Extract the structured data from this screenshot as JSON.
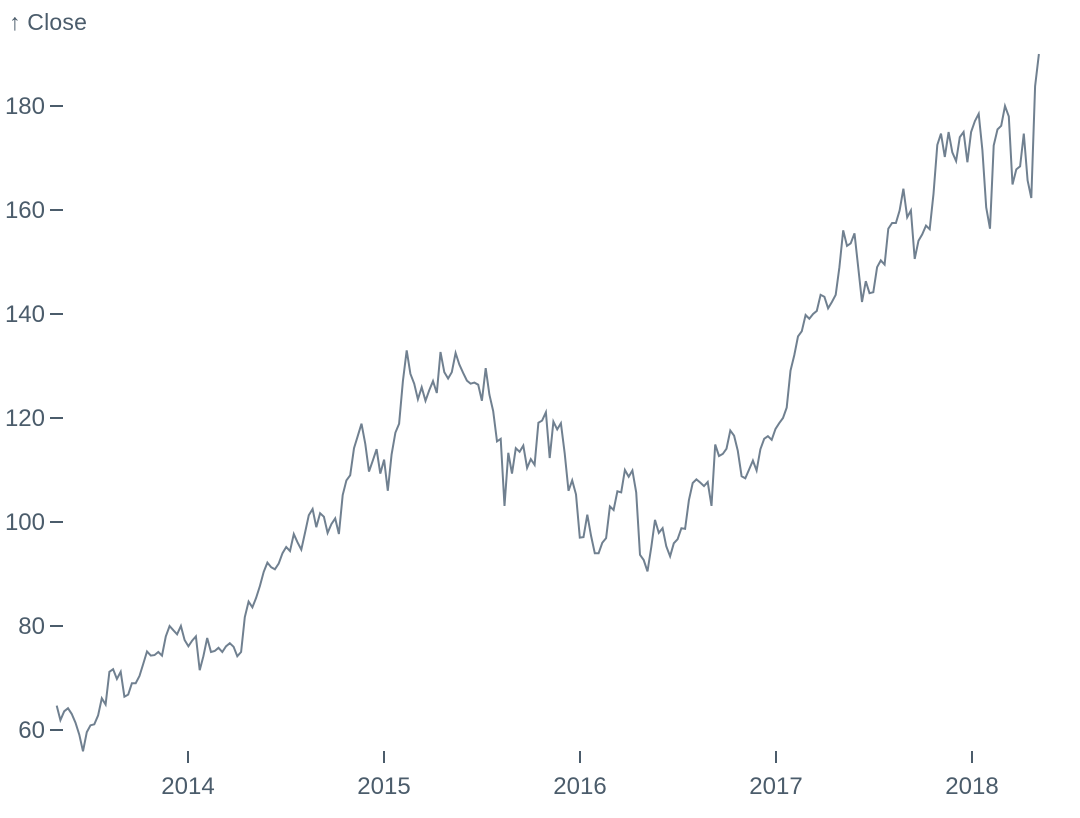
{
  "chart_data": {
    "type": "line",
    "title": "",
    "y_axis_label": "↑ Close",
    "series_name": "Close",
    "x_label": "",
    "x_ticks": [
      2014,
      2015,
      2016,
      2017,
      2018
    ],
    "y_ticks": [
      60,
      80,
      100,
      120,
      140,
      160,
      180
    ],
    "x_domain": [
      2013.33,
      2018.38
    ],
    "y_domain": [
      54,
      192
    ],
    "grid": false,
    "legend": false,
    "line_color": "#708090",
    "text_color": "#4b5c6b",
    "background_color": "#ffffff",
    "x_start": 2013.33,
    "x_step": 0.0192,
    "values": [
      64.7,
      61.9,
      63.6,
      64.2,
      63.1,
      61.4,
      59.1,
      55.9,
      59.6,
      60.9,
      61.1,
      62.8,
      66.1,
      64.9,
      71.2,
      71.7,
      69.8,
      71.2,
      66.4,
      66.8,
      69.0,
      69.0,
      70.4,
      72.7,
      75.1,
      74.3,
      74.4,
      75.0,
      74.3,
      78.0,
      80.0,
      79.2,
      78.4,
      80.0,
      77.3,
      76.1,
      77.2,
      78.0,
      71.5,
      74.2,
      77.7,
      75.0,
      75.2,
      75.8,
      75.0,
      76.1,
      76.7,
      76.0,
      74.2,
      75.0,
      81.7,
      84.7,
      83.6,
      85.4,
      87.7,
      90.4,
      92.2,
      91.3,
      90.9,
      92.0,
      94.0,
      95.2,
      94.4,
      97.7,
      96.1,
      94.7,
      98.0,
      101.3,
      102.5,
      99.0,
      101.7,
      101.0,
      97.9,
      99.6,
      100.7,
      97.7,
      105.2,
      108.0,
      109.0,
      114.2,
      116.5,
      118.9,
      115.0,
      109.7,
      111.8,
      114.0,
      109.3,
      112.0,
      106.0,
      113.0,
      117.2,
      118.9,
      127.1,
      133.0,
      128.5,
      126.6,
      123.6,
      125.9,
      123.3,
      125.3,
      127.1,
      124.8,
      132.7,
      128.8,
      127.6,
      128.8,
      132.5,
      130.3,
      128.7,
      127.2,
      126.6,
      126.8,
      126.4,
      123.3,
      129.6,
      124.5,
      121.3,
      115.5,
      116.0,
      103.1,
      113.3,
      109.3,
      114.2,
      113.5,
      114.7,
      110.4,
      112.1,
      111.0,
      119.1,
      119.5,
      121.1,
      112.3,
      119.3,
      117.8,
      119.0,
      113.2,
      106.0,
      108.0,
      105.3,
      97.0,
      97.1,
      101.4,
      97.3,
      94.0,
      94.0,
      96.0,
      96.9,
      103.0,
      102.3,
      105.9,
      105.7,
      110.0,
      108.7,
      109.9,
      105.7,
      93.7,
      92.7,
      90.5,
      95.2,
      100.4,
      97.9,
      98.8,
      95.3,
      93.4,
      95.9,
      96.7,
      98.8,
      98.7,
      104.2,
      107.5,
      108.2,
      107.6,
      106.9,
      107.7,
      103.1,
      114.9,
      112.7,
      113.1,
      114.1,
      117.6,
      116.6,
      113.7,
      108.8,
      108.4,
      110.1,
      111.8,
      109.9,
      114.0,
      116.0,
      116.5,
      115.8,
      117.9,
      119.0,
      120.0,
      122.0,
      129.1,
      132.1,
      135.7,
      136.7,
      139.8,
      139.1,
      140.0,
      140.6,
      143.7,
      143.3,
      141.1,
      142.3,
      143.7,
      149.0,
      156.1,
      153.1,
      153.6,
      155.5,
      149.0,
      142.3,
      146.3,
      144.0,
      144.2,
      149.0,
      150.3,
      149.5,
      156.4,
      157.5,
      157.5,
      159.9,
      164.1,
      158.6,
      159.9,
      150.6,
      154.1,
      155.3,
      157.0,
      156.3,
      163.1,
      172.5,
      174.7,
      170.2,
      175.0,
      171.1,
      169.4,
      174.0,
      175.0,
      169.2,
      175.0,
      177.1,
      178.5,
      171.5,
      160.5,
      156.4,
      172.4,
      175.5,
      176.2,
      180.0,
      178.0,
      164.9,
      167.8,
      168.4,
      174.7,
      165.7,
      162.3,
      183.8,
      190.0
    ]
  }
}
